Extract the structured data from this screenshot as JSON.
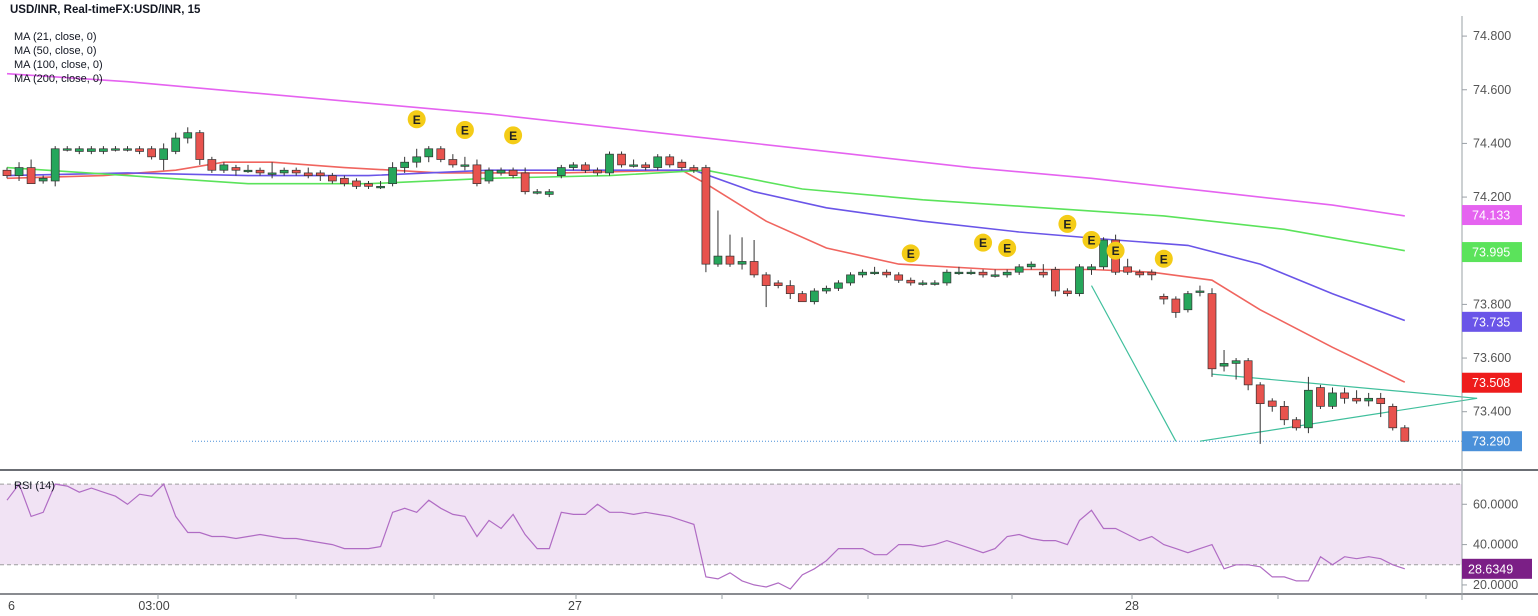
{
  "header": {
    "symbol_line": "USD/INR, Real-timeFX:USD/INR, 15",
    "indicators": [
      "MA (21, close, 0)",
      "MA (50, close, 0)",
      "MA (100, close, 0)",
      "MA (200, close, 0)"
    ]
  },
  "colors": {
    "up": "#26a65b",
    "down": "#e8534e",
    "ma21": "#f0655f",
    "ma50": "#6a55e8",
    "ma100": "#5be35b",
    "ma200": "#e563f0",
    "rsi": "#b06cc4",
    "rsi_band": "#f1e3f4",
    "trend": "#3fbf9c",
    "last": "#4a90d9",
    "event": "#f4cc17"
  },
  "chart_data": [
    {
      "type": "candlestick",
      "title": "USD/INR, Real-timeFX:USD/INR, 15",
      "x_ticks": [
        "6",
        "03:00",
        "27",
        "28"
      ],
      "ylim": [
        73.22,
        74.86
      ],
      "y_ticks": [
        "74.800",
        "74.600",
        "74.400",
        "74.200",
        "74.000",
        "73.800",
        "73.600",
        "73.400"
      ],
      "candles": [
        [
          74.3,
          74.31,
          74.27,
          74.28
        ],
        [
          74.28,
          74.33,
          74.26,
          74.31
        ],
        [
          74.31,
          74.34,
          74.25,
          74.25
        ],
        [
          74.26,
          74.28,
          74.25,
          74.27
        ],
        [
          74.26,
          74.39,
          74.24,
          74.38
        ],
        [
          74.38,
          74.39,
          74.37,
          74.38
        ],
        [
          74.37,
          74.39,
          74.36,
          74.38
        ],
        [
          74.37,
          74.39,
          74.36,
          74.38
        ],
        [
          74.37,
          74.39,
          74.36,
          74.38
        ],
        [
          74.38,
          74.39,
          74.37,
          74.38
        ],
        [
          74.38,
          74.39,
          74.37,
          74.38
        ],
        [
          74.38,
          74.39,
          74.36,
          74.37
        ],
        [
          74.38,
          74.39,
          74.34,
          74.35
        ],
        [
          74.34,
          74.4,
          74.3,
          74.38
        ],
        [
          74.37,
          74.44,
          74.36,
          74.42
        ],
        [
          74.42,
          74.46,
          74.4,
          74.44
        ],
        [
          74.44,
          74.45,
          74.32,
          74.34
        ],
        [
          74.34,
          74.35,
          74.29,
          74.3
        ],
        [
          74.3,
          74.33,
          74.29,
          74.32
        ],
        [
          74.31,
          74.32,
          74.28,
          74.3
        ],
        [
          74.3,
          74.32,
          74.29,
          74.3
        ],
        [
          74.3,
          74.31,
          74.28,
          74.29
        ],
        [
          74.29,
          74.33,
          74.27,
          74.29
        ],
        [
          74.29,
          74.31,
          74.28,
          74.3
        ],
        [
          74.3,
          74.31,
          74.28,
          74.29
        ],
        [
          74.29,
          74.31,
          74.27,
          74.28
        ],
        [
          74.29,
          74.3,
          74.26,
          74.28
        ],
        [
          74.28,
          74.29,
          74.25,
          74.26
        ],
        [
          74.27,
          74.28,
          74.24,
          74.25
        ],
        [
          74.26,
          74.27,
          74.23,
          74.24
        ],
        [
          74.25,
          74.26,
          74.23,
          74.24
        ],
        [
          74.24,
          74.26,
          74.23,
          74.24
        ],
        [
          74.25,
          74.33,
          74.24,
          74.31
        ],
        [
          74.31,
          74.35,
          74.29,
          74.33
        ],
        [
          74.33,
          74.38,
          74.31,
          74.35
        ],
        [
          74.35,
          74.39,
          74.33,
          74.38
        ],
        [
          74.38,
          74.39,
          74.33,
          74.34
        ],
        [
          74.34,
          74.36,
          74.31,
          74.32
        ],
        [
          74.32,
          74.35,
          74.3,
          74.32
        ],
        [
          74.32,
          74.34,
          74.24,
          74.25
        ],
        [
          74.26,
          74.31,
          74.25,
          74.3
        ],
        [
          74.29,
          74.31,
          74.28,
          74.3
        ],
        [
          74.3,
          74.31,
          74.27,
          74.28
        ],
        [
          74.29,
          74.31,
          74.21,
          74.22
        ],
        [
          74.22,
          74.23,
          74.21,
          74.22
        ],
        [
          74.21,
          74.23,
          74.2,
          74.22
        ],
        [
          74.28,
          74.32,
          74.27,
          74.31
        ],
        [
          74.31,
          74.33,
          74.3,
          74.32
        ],
        [
          74.32,
          74.33,
          74.29,
          74.3
        ],
        [
          74.3,
          74.31,
          74.28,
          74.29
        ],
        [
          74.29,
          74.37,
          74.28,
          74.36
        ],
        [
          74.36,
          74.37,
          74.31,
          74.32
        ],
        [
          74.32,
          74.34,
          74.31,
          74.32
        ],
        [
          74.32,
          74.33,
          74.3,
          74.31
        ],
        [
          74.31,
          74.36,
          74.3,
          74.35
        ],
        [
          74.35,
          74.36,
          74.31,
          74.32
        ],
        [
          74.33,
          74.34,
          74.3,
          74.31
        ],
        [
          74.31,
          74.32,
          74.29,
          74.3
        ],
        [
          74.31,
          74.32,
          73.92,
          73.95
        ],
        [
          73.95,
          74.15,
          73.94,
          73.98
        ],
        [
          73.98,
          74.06,
          73.94,
          73.95
        ],
        [
          73.95,
          74.05,
          73.93,
          73.96
        ],
        [
          73.96,
          74.04,
          73.9,
          73.91
        ],
        [
          73.91,
          73.92,
          73.79,
          73.87
        ],
        [
          73.88,
          73.89,
          73.86,
          73.87
        ],
        [
          73.87,
          73.89,
          73.82,
          73.84
        ],
        [
          73.84,
          73.85,
          73.81,
          73.81
        ],
        [
          73.81,
          73.86,
          73.8,
          73.85
        ],
        [
          73.85,
          73.87,
          73.84,
          73.86
        ],
        [
          73.86,
          73.89,
          73.85,
          73.88
        ],
        [
          73.88,
          73.92,
          73.87,
          73.91
        ],
        [
          73.91,
          73.93,
          73.9,
          73.92
        ],
        [
          73.92,
          73.94,
          73.91,
          73.92
        ],
        [
          73.92,
          73.93,
          73.9,
          73.91
        ],
        [
          73.91,
          73.92,
          73.88,
          73.89
        ],
        [
          73.89,
          73.9,
          73.87,
          73.88
        ],
        [
          73.88,
          73.89,
          73.87,
          73.88
        ],
        [
          73.88,
          73.89,
          73.87,
          73.88
        ],
        [
          73.88,
          73.93,
          73.87,
          73.92
        ],
        [
          73.92,
          73.94,
          73.91,
          73.92
        ],
        [
          73.92,
          73.93,
          73.91,
          73.92
        ],
        [
          73.92,
          73.93,
          73.9,
          73.91
        ],
        [
          73.91,
          73.93,
          73.9,
          73.91
        ],
        [
          73.91,
          73.93,
          73.9,
          73.92
        ],
        [
          73.92,
          73.95,
          73.91,
          73.94
        ],
        [
          73.94,
          73.96,
          73.93,
          73.95
        ],
        [
          73.92,
          73.95,
          73.9,
          73.91
        ],
        [
          73.93,
          73.94,
          73.83,
          73.85
        ],
        [
          73.85,
          73.86,
          73.83,
          73.84
        ],
        [
          73.84,
          73.95,
          73.83,
          73.94
        ],
        [
          73.93,
          73.95,
          73.91,
          73.94
        ],
        [
          73.94,
          74.05,
          73.93,
          74.04
        ],
        [
          74.04,
          74.06,
          73.91,
          73.92
        ],
        [
          73.94,
          73.97,
          73.91,
          73.92
        ],
        [
          73.92,
          73.93,
          73.9,
          73.91
        ],
        [
          73.92,
          73.93,
          73.89,
          73.91
        ],
        [
          73.83,
          73.84,
          73.8,
          73.82
        ],
        [
          73.82,
          73.83,
          73.75,
          73.77
        ],
        [
          73.78,
          73.85,
          73.77,
          73.84
        ],
        [
          73.85,
          73.87,
          73.83,
          73.85
        ],
        [
          73.84,
          73.86,
          73.53,
          73.56
        ],
        [
          73.57,
          73.63,
          73.55,
          73.58
        ],
        [
          73.58,
          73.6,
          73.52,
          73.59
        ],
        [
          73.59,
          73.6,
          73.48,
          73.5
        ],
        [
          73.5,
          73.51,
          73.28,
          73.43
        ],
        [
          73.44,
          73.45,
          73.4,
          73.42
        ],
        [
          73.42,
          73.44,
          73.35,
          73.37
        ],
        [
          73.37,
          73.38,
          73.33,
          73.34
        ],
        [
          73.34,
          73.53,
          73.32,
          73.48
        ],
        [
          73.49,
          73.5,
          73.41,
          73.42
        ],
        [
          73.42,
          73.49,
          73.41,
          73.47
        ],
        [
          73.47,
          73.49,
          73.43,
          73.45
        ],
        [
          73.45,
          73.48,
          73.43,
          73.44
        ],
        [
          73.44,
          73.47,
          73.42,
          73.45
        ],
        [
          73.45,
          73.47,
          73.38,
          73.43
        ],
        [
          73.42,
          73.43,
          73.33,
          73.34
        ],
        [
          73.34,
          73.35,
          73.29,
          73.29
        ]
      ],
      "moving_averages": [
        {
          "name": "MA (21, close, 0)",
          "points": [
            [
              0,
              74.27
            ],
            [
              8,
              74.28
            ],
            [
              14,
              74.3
            ],
            [
              18,
              74.33
            ],
            [
              22,
              74.33
            ],
            [
              28,
              74.31
            ],
            [
              36,
              74.29
            ],
            [
              46,
              74.29
            ],
            [
              56,
              74.3
            ],
            [
              58,
              74.25
            ],
            [
              63,
              74.11
            ],
            [
              68,
              74.01
            ],
            [
              74,
              73.95
            ],
            [
              82,
              73.93
            ],
            [
              90,
              73.93
            ],
            [
              95,
              73.92
            ],
            [
              100,
              73.89
            ],
            [
              104,
              73.78
            ],
            [
              110,
              73.64
            ],
            [
              116,
              73.51
            ]
          ]
        },
        {
          "name": "MA (50, close, 0)",
          "points": [
            [
              0,
              74.28
            ],
            [
              10,
              74.29
            ],
            [
              20,
              74.28
            ],
            [
              30,
              74.28
            ],
            [
              40,
              74.3
            ],
            [
              50,
              74.3
            ],
            [
              57,
              74.3
            ],
            [
              62,
              74.22
            ],
            [
              68,
              74.16
            ],
            [
              76,
              74.11
            ],
            [
              84,
              74.07
            ],
            [
              92,
              74.04
            ],
            [
              98,
              74.02
            ],
            [
              104,
              73.95
            ],
            [
              110,
              73.84
            ],
            [
              116,
              73.74
            ]
          ]
        },
        {
          "name": "MA (100, close, 0)",
          "points": [
            [
              0,
              74.31
            ],
            [
              10,
              74.28
            ],
            [
              20,
              74.25
            ],
            [
              30,
              74.25
            ],
            [
              40,
              74.27
            ],
            [
              50,
              74.28
            ],
            [
              58,
              74.3
            ],
            [
              66,
              74.23
            ],
            [
              76,
              74.19
            ],
            [
              86,
              74.16
            ],
            [
              96,
              74.13
            ],
            [
              106,
              74.08
            ],
            [
              116,
              74.0
            ]
          ]
        },
        {
          "name": "MA (200, close, 0)",
          "points": [
            [
              0,
              74.66
            ],
            [
              10,
              74.63
            ],
            [
              20,
              74.59
            ],
            [
              30,
              74.55
            ],
            [
              40,
              74.51
            ],
            [
              50,
              74.46
            ],
            [
              60,
              74.41
            ],
            [
              70,
              74.36
            ],
            [
              80,
              74.31
            ],
            [
              90,
              74.27
            ],
            [
              100,
              74.22
            ],
            [
              110,
              74.17
            ],
            [
              116,
              74.13
            ]
          ]
        }
      ],
      "events_marker": "E",
      "events": [
        [
          34,
          74.49
        ],
        [
          38,
          74.45
        ],
        [
          42,
          74.43
        ],
        [
          75,
          73.99
        ],
        [
          81,
          74.03
        ],
        [
          83,
          74.01
        ],
        [
          88,
          74.1
        ],
        [
          90,
          74.04
        ],
        [
          92,
          74.0
        ],
        [
          96,
          73.97
        ]
      ],
      "trendlines": [
        [
          [
            90,
            73.87
          ],
          [
            97,
            73.29
          ]
        ],
        [
          [
            100,
            73.54
          ],
          [
            122,
            73.45
          ]
        ],
        [
          [
            99,
            73.29
          ],
          [
            122,
            73.45
          ]
        ]
      ],
      "last_price_line": 73.29,
      "price_labels": [
        {
          "text": "74.133",
          "value": 74.133,
          "color": "#e563f0"
        },
        {
          "text": "73.995",
          "value": 73.995,
          "color": "#5be35b"
        },
        {
          "text": "73.735",
          "value": 73.735,
          "color": "#6a55e8"
        },
        {
          "text": "73.508",
          "value": 73.508,
          "color": "#ee1c1c"
        },
        {
          "text": "73.290",
          "value": 73.29,
          "color": "#4a90d9"
        }
      ]
    },
    {
      "type": "line",
      "title": "RSI (14)",
      "ylim": [
        16,
        76
      ],
      "y_ticks": [
        "60.0000",
        "40.0000",
        "20.0000"
      ],
      "band": [
        30,
        70
      ],
      "last_label": "28.6349",
      "values": [
        62,
        70,
        54,
        56,
        70,
        69,
        66,
        68,
        66,
        64,
        60,
        65,
        64,
        70,
        54,
        46,
        46,
        44,
        44,
        43,
        44,
        45,
        44,
        43,
        43,
        42,
        41,
        40,
        38,
        38,
        38,
        39,
        56,
        58,
        56,
        62,
        58,
        55,
        54,
        44,
        52,
        48,
        55,
        45,
        38,
        38,
        56,
        55,
        55,
        60,
        56,
        56,
        55,
        56,
        55,
        54,
        52,
        50,
        24,
        23,
        26,
        22,
        20,
        19,
        21,
        18,
        25,
        28,
        32,
        38,
        38,
        38,
        35,
        35,
        40,
        40,
        39,
        40,
        42,
        40,
        38,
        36,
        38,
        44,
        45,
        43,
        42,
        42,
        40,
        52,
        57,
        48,
        48,
        45,
        42,
        44,
        40,
        38,
        36,
        38,
        40,
        28,
        30,
        30,
        29,
        24,
        24,
        22,
        22,
        34,
        30,
        34,
        33,
        34,
        33,
        30,
        28
      ]
    }
  ]
}
